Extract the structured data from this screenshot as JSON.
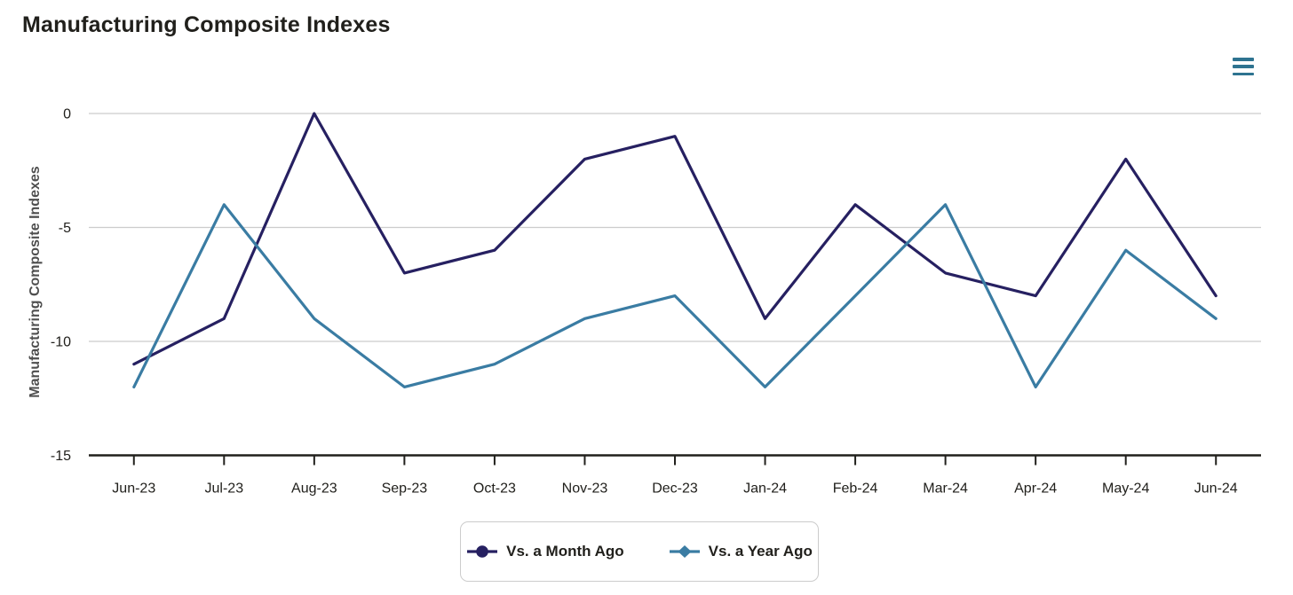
{
  "header": {
    "title": "Manufacturing Composite Indexes"
  },
  "menu": {
    "icon": "hamburger-menu-icon"
  },
  "chart_data": {
    "type": "line",
    "title": "Manufacturing Composite Indexes",
    "ylabel": "Manufacturing Composite Indexes",
    "xlabel": "",
    "ylim": [
      -15,
      0
    ],
    "yticks": [
      0,
      -5,
      -10,
      -15
    ],
    "grid": true,
    "legend_position": "bottom",
    "categories": [
      "Jun-23",
      "Jul-23",
      "Aug-23",
      "Sep-23",
      "Oct-23",
      "Nov-23",
      "Dec-23",
      "Jan-24",
      "Feb-24",
      "Mar-24",
      "Apr-24",
      "May-24",
      "Jun-24"
    ],
    "series": [
      {
        "name": "Vs. a Month Ago",
        "marker": "circle",
        "color": "#262061",
        "values": [
          -11,
          -9,
          0,
          -7,
          -6,
          -2,
          -1,
          -9,
          -4,
          -7,
          -8,
          -2,
          -8
        ]
      },
      {
        "name": "Vs. a Year Ago",
        "marker": "diamond",
        "color": "#3a7ca3",
        "values": [
          -12,
          -4,
          -9,
          -12,
          -11,
          -9,
          -8,
          -12,
          -8,
          -4,
          -12,
          -6,
          -9
        ]
      }
    ]
  },
  "colors": {
    "series_month_ago": "#262061",
    "series_year_ago": "#3a7ca3",
    "menu_icon": "#2e7390",
    "gridline": "#cccccc",
    "axis_line": "#21201c",
    "axis_label": "#21201c",
    "y_axis_title": "#4f4f4f",
    "background": "#ffffff",
    "legend_border": "#cccccc"
  }
}
